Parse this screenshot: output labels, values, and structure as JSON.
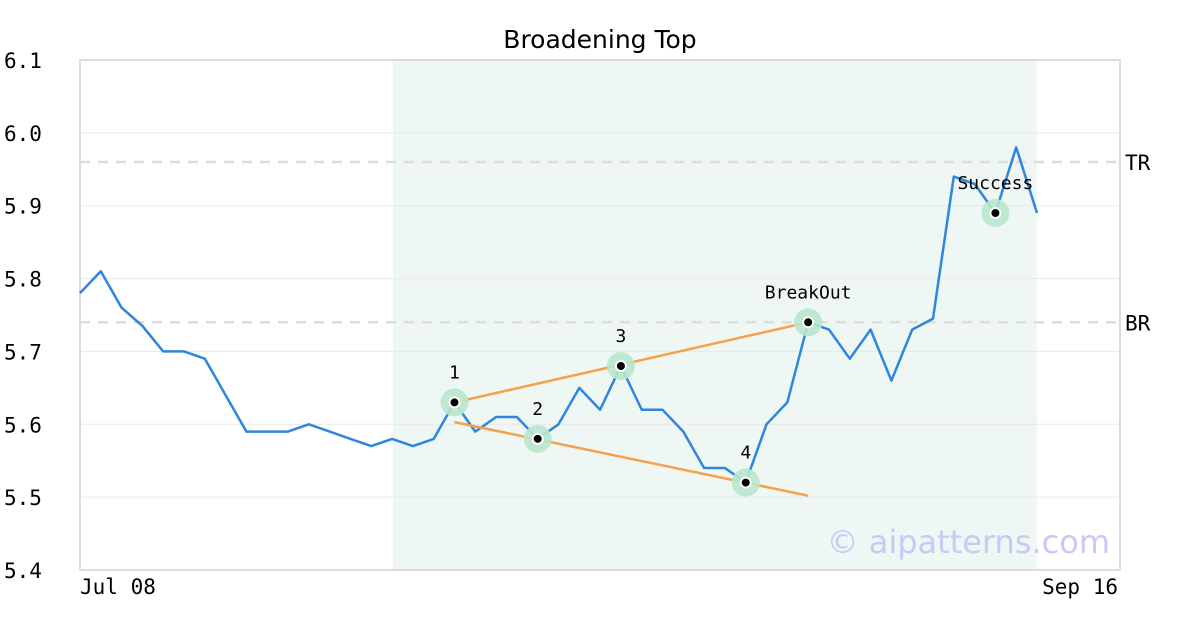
{
  "chart_data": {
    "type": "line",
    "title": "Broadening Top",
    "x_labels": {
      "first": "Jul 08",
      "last": "Sep 16"
    },
    "ylim": [
      5.4,
      6.1
    ],
    "y_ticks": [
      "6.1",
      "6.0",
      "5.9",
      "5.8",
      "5.7",
      "5.6",
      "5.5",
      "5.4"
    ],
    "grid": true,
    "series": [
      {
        "color": "#2e86de",
        "values": [
          5.78,
          5.81,
          5.76,
          5.735,
          5.7,
          5.7,
          5.69,
          5.64,
          5.59,
          5.59,
          5.59,
          5.6,
          5.59,
          5.58,
          5.57,
          5.58,
          5.57,
          5.58,
          5.63,
          5.59,
          5.61,
          5.61,
          5.58,
          5.6,
          5.65,
          5.62,
          5.68,
          5.62,
          5.62,
          5.59,
          5.54,
          5.54,
          5.52,
          5.6,
          5.63,
          5.74,
          5.73,
          5.69,
          5.73,
          5.66,
          5.73,
          5.745,
          5.94,
          5.93,
          5.89,
          5.98,
          5.89
        ]
      }
    ],
    "highlight_region": {
      "from_index": 16,
      "to_index": 46,
      "color": "#eef7f3"
    },
    "reference_lines": [
      {
        "label": "TR",
        "value": 5.96
      },
      {
        "label": "BR",
        "value": 5.74
      }
    ],
    "trend_lines": [
      {
        "from": [
          18,
          5.63
        ],
        "to": [
          35,
          5.74
        ],
        "color": "#f5a04a"
      },
      {
        "from": [
          18,
          5.603
        ],
        "to": [
          35,
          5.502
        ],
        "color": "#f5a04a"
      }
    ],
    "points": [
      {
        "label": "1",
        "index": 18,
        "value": 5.63
      },
      {
        "label": "2",
        "index": 22,
        "value": 5.58
      },
      {
        "label": "3",
        "index": 26,
        "value": 5.68
      },
      {
        "label": "4",
        "index": 32,
        "value": 5.52
      },
      {
        "label": "BreakOut",
        "index": 35,
        "value": 5.74
      },
      {
        "label": "Success",
        "index": 44,
        "value": 5.89
      }
    ],
    "watermark": "© aipatterns.com"
  }
}
